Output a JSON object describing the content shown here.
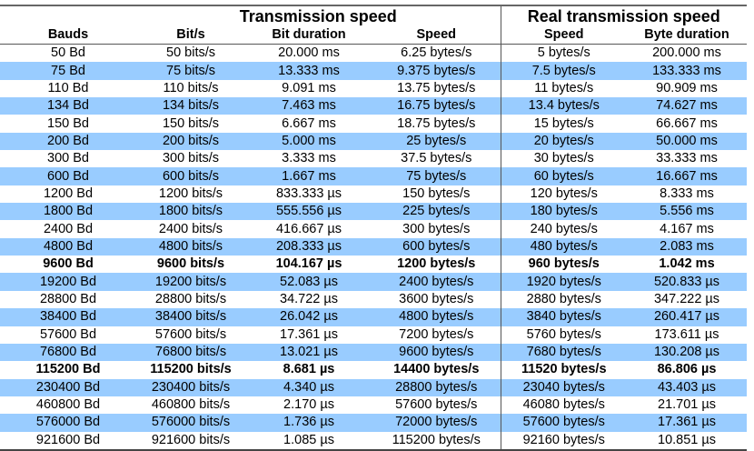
{
  "header": {
    "group1": "Transmission speed",
    "group2": "Real transmission speed",
    "columns": [
      "Bauds",
      "Bit/s",
      "Bit duration",
      "Speed",
      "Speed",
      "Byte duration"
    ]
  },
  "stripe_color": "#99ccff",
  "rows": [
    {
      "cells": [
        "50 Bd",
        "50 bits/s",
        "20.000 ms",
        "6.25 bytes/s",
        "5 bytes/s",
        "200.000 ms"
      ]
    },
    {
      "cells": [
        "75 Bd",
        "75 bits/s",
        "13.333 ms",
        "9.375 bytes/s",
        "7.5 bytes/s",
        "133.333 ms"
      ]
    },
    {
      "cells": [
        "110 Bd",
        "110 bits/s",
        "9.091 ms",
        "13.75 bytes/s",
        "11 bytes/s",
        "90.909 ms"
      ]
    },
    {
      "cells": [
        "134 Bd",
        "134 bits/s",
        "7.463 ms",
        "16.75 bytes/s",
        "13.4 bytes/s",
        "74.627 ms"
      ]
    },
    {
      "cells": [
        "150 Bd",
        "150 bits/s",
        "6.667 ms",
        "18.75 bytes/s",
        "15 bytes/s",
        "66.667 ms"
      ]
    },
    {
      "cells": [
        "200 Bd",
        "200 bits/s",
        "5.000 ms",
        "25 bytes/s",
        "20 bytes/s",
        "50.000 ms"
      ]
    },
    {
      "cells": [
        "300 Bd",
        "300 bits/s",
        "3.333 ms",
        "37.5 bytes/s",
        "30 bytes/s",
        "33.333 ms"
      ]
    },
    {
      "cells": [
        "600 Bd",
        "600 bits/s",
        "1.667 ms",
        "75 bytes/s",
        "60 bytes/s",
        "16.667 ms"
      ]
    },
    {
      "cells": [
        "1200 Bd",
        "1200 bits/s",
        "833.333 µs",
        "150 bytes/s",
        "120 bytes/s",
        "8.333 ms"
      ]
    },
    {
      "cells": [
        "1800 Bd",
        "1800 bits/s",
        "555.556 µs",
        "225 bytes/s",
        "180 bytes/s",
        "5.556 ms"
      ]
    },
    {
      "cells": [
        "2400 Bd",
        "2400 bits/s",
        "416.667 µs",
        "300 bytes/s",
        "240 bytes/s",
        "4.167 ms"
      ]
    },
    {
      "cells": [
        "4800 Bd",
        "4800 bits/s",
        "208.333 µs",
        "600 bytes/s",
        "480 bytes/s",
        "2.083 ms"
      ]
    },
    {
      "cells": [
        "9600 Bd",
        "9600 bits/s",
        "104.167 µs",
        "1200 bytes/s",
        "960 bytes/s",
        "1.042 ms"
      ],
      "bold": true
    },
    {
      "cells": [
        "19200 Bd",
        "19200 bits/s",
        "52.083 µs",
        "2400 bytes/s",
        "1920 bytes/s",
        "520.833 µs"
      ]
    },
    {
      "cells": [
        "28800 Bd",
        "28800 bits/s",
        "34.722 µs",
        "3600 bytes/s",
        "2880 bytes/s",
        "347.222 µs"
      ]
    },
    {
      "cells": [
        "38400 Bd",
        "38400 bits/s",
        "26.042 µs",
        "4800 bytes/s",
        "3840 bytes/s",
        "260.417 µs"
      ]
    },
    {
      "cells": [
        "57600 Bd",
        "57600 bits/s",
        "17.361 µs",
        "7200 bytes/s",
        "5760 bytes/s",
        "173.611 µs"
      ]
    },
    {
      "cells": [
        "76800 Bd",
        "76800 bits/s",
        "13.021 µs",
        "9600 bytes/s",
        "7680 bytes/s",
        "130.208 µs"
      ]
    },
    {
      "cells": [
        "115200 Bd",
        "115200 bits/s",
        "8.681 µs",
        "14400 bytes/s",
        "11520 bytes/s",
        "86.806 µs"
      ],
      "bold": true
    },
    {
      "cells": [
        "230400 Bd",
        "230400 bits/s",
        "4.340 µs",
        "28800 bytes/s",
        "23040 bytes/s",
        "43.403 µs"
      ]
    },
    {
      "cells": [
        "460800 Bd",
        "460800 bits/s",
        "2.170 µs",
        "57600 bytes/s",
        "46080 bytes/s",
        "21.701 µs"
      ]
    },
    {
      "cells": [
        "576000 Bd",
        "576000 bits/s",
        "1.736 µs",
        "72000 bytes/s",
        "57600 bytes/s",
        "17.361 µs"
      ]
    },
    {
      "cells": [
        "921600 Bd",
        "921600 bits/s",
        "1.085 µs",
        "115200 bytes/s",
        "92160 bytes/s",
        "10.851 µs"
      ]
    }
  ]
}
